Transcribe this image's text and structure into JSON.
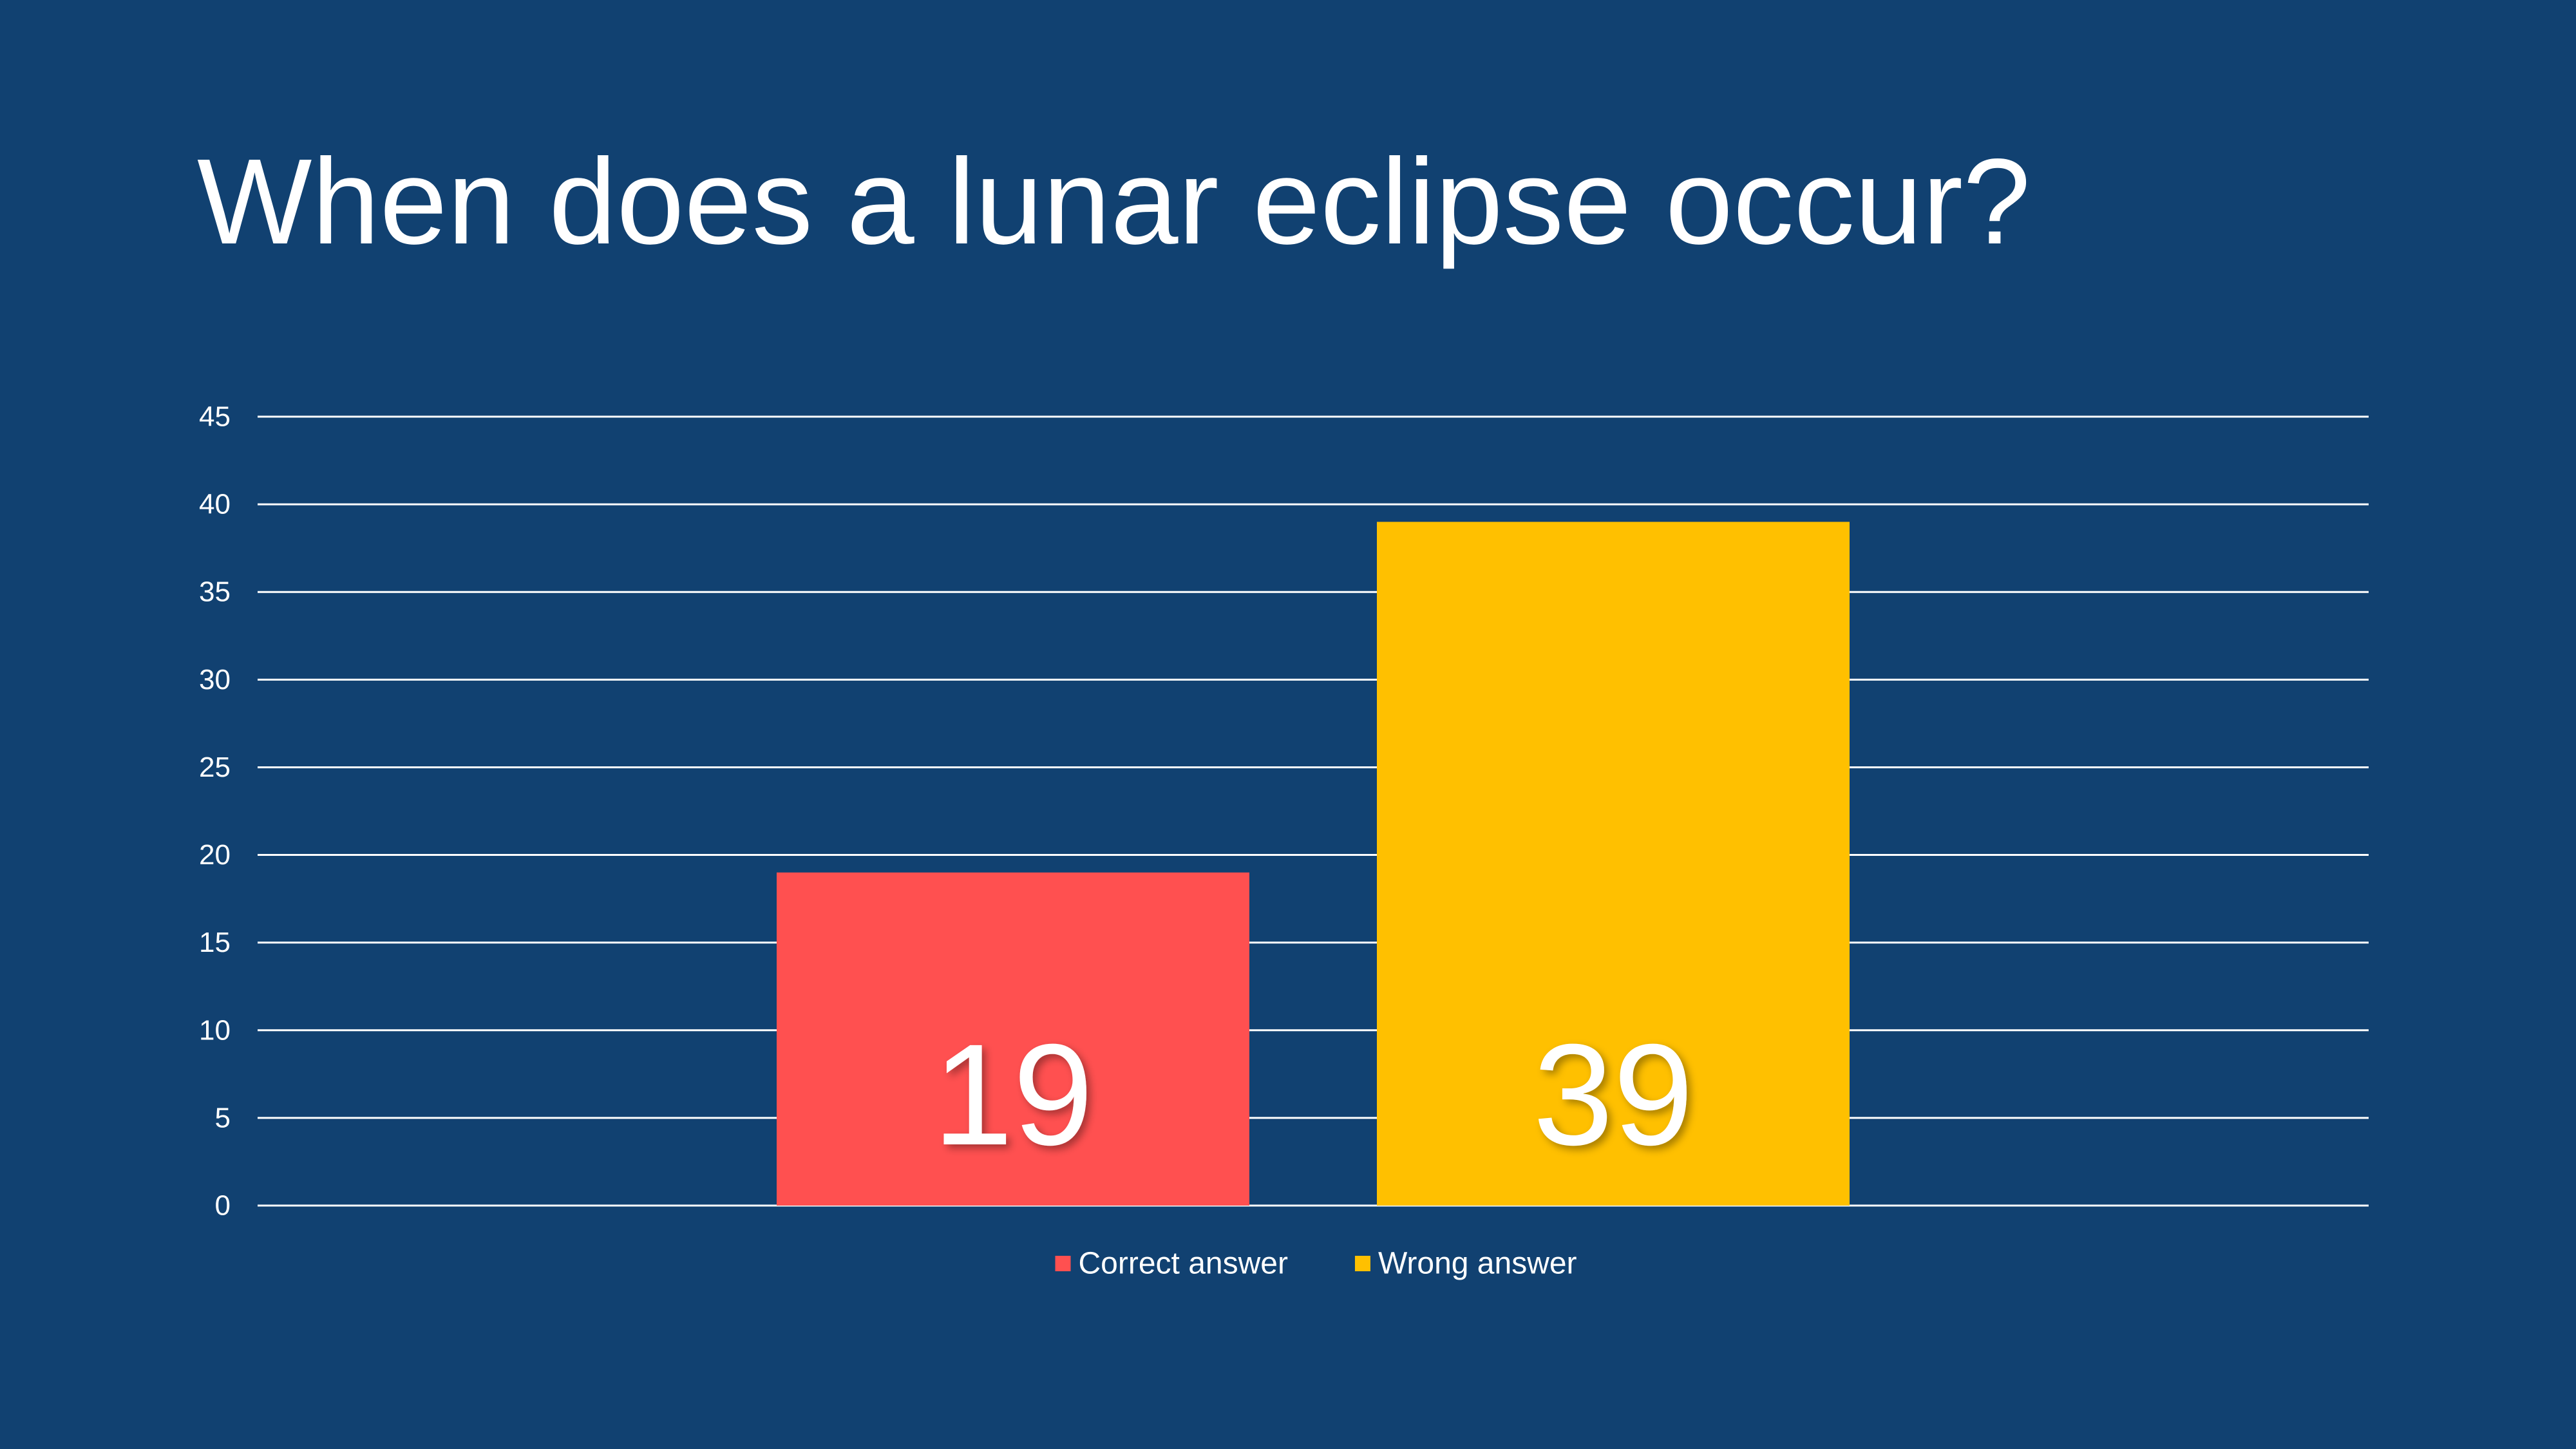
{
  "slide": {
    "title": "When does a lunar eclipse occur?"
  },
  "chart_data": {
    "type": "bar",
    "categories": [
      ""
    ],
    "series": [
      {
        "name": "Correct answer",
        "values": [
          19
        ],
        "color": "#FF5050"
      },
      {
        "name": "Wrong answer",
        "values": [
          39
        ],
        "color": "#FFC000"
      }
    ],
    "ylim": [
      0,
      45
    ],
    "yticks": [
      0,
      5,
      10,
      15,
      20,
      25,
      30,
      35,
      40,
      45
    ],
    "grid": true,
    "legend": "bottom",
    "data_labels": true
  },
  "colors": {
    "background": "#114171",
    "gridline": "#FFFFFF",
    "text": "#FFFFFF"
  }
}
